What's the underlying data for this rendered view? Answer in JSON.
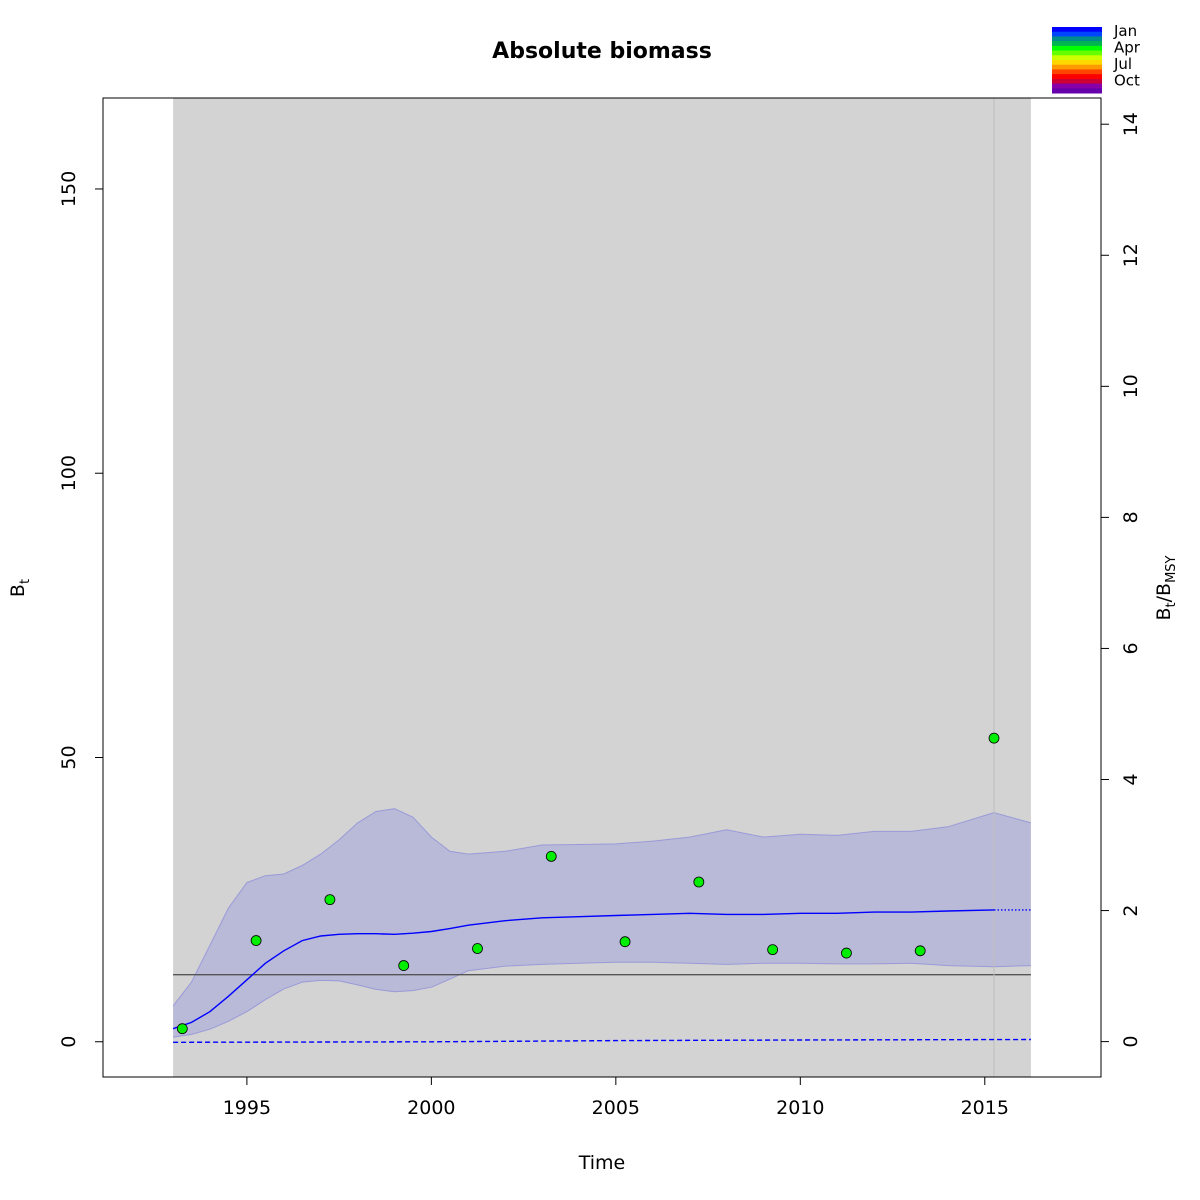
{
  "chart_data": {
    "type": "line",
    "title": "Absolute biomass",
    "xlabel": "Time",
    "ylabel": {
      "main": "B",
      "sub": "t"
    },
    "y2label": {
      "a": "B",
      "a_sub": "t",
      "sep": "/",
      "b": "B",
      "b_sub": "MSY"
    },
    "xlim": [
      1991.1,
      2018.15
    ],
    "ylim": [
      -6.2,
      166
    ],
    "y2lim": [
      -0.54,
      14.4
    ],
    "x_ticks": [
      1995,
      2000,
      2005,
      2010,
      2015
    ],
    "x_tick_labels": [
      "1995",
      "2000",
      "2005",
      "2010",
      "2015"
    ],
    "y_ticks": [
      0,
      50,
      100,
      150
    ],
    "y_tick_labels": [
      "0",
      "50",
      "100",
      "150"
    ],
    "y2_ticks": [
      0,
      2,
      4,
      6,
      8,
      10,
      12,
      14
    ],
    "y2_tick_labels": [
      "0",
      "2",
      "4",
      "6",
      "8",
      "10",
      "12",
      "14"
    ],
    "grid": false,
    "shaded_region": {
      "x_start": 1993.0,
      "x_end": 2016.25,
      "color": "#d3d3d3"
    },
    "vertical_line": {
      "x": 2015.25,
      "color": "#bebebe"
    },
    "bmsy_line": {
      "y": 11.8,
      "color": "#555555"
    },
    "series": [
      {
        "name": "",
        "kind": "estimate",
        "color": "#0000ff",
        "x": [
          1993.0,
          1993.5,
          1994.0,
          1994.5,
          1995.0,
          1995.5,
          1996.0,
          1996.5,
          1997.0,
          1997.5,
          1998.0,
          1998.5,
          1999.0,
          1999.5,
          2000.0,
          2000.5,
          2001.0,
          2002.0,
          2003.0,
          2004.0,
          2005.0,
          2006.0,
          2007.0,
          2008.0,
          2009.0,
          2010.0,
          2011.0,
          2012.0,
          2013.0,
          2014.0,
          2015.25
        ],
        "y": [
          2.3,
          3.4,
          5.3,
          8.0,
          10.9,
          13.8,
          16.0,
          17.8,
          18.6,
          18.9,
          19.0,
          19.0,
          18.9,
          19.1,
          19.4,
          19.9,
          20.5,
          21.3,
          21.8,
          22.0,
          22.2,
          22.4,
          22.6,
          22.4,
          22.4,
          22.6,
          22.6,
          22.8,
          22.8,
          23.0,
          23.2
        ]
      },
      {
        "name": "",
        "kind": "forecast",
        "color": "#0000ff",
        "style": "dotted",
        "x": [
          2015.25,
          2016.25
        ],
        "y": [
          23.2,
          23.2
        ]
      },
      {
        "name": "",
        "kind": "lower-dashed",
        "color": "#0000ff",
        "style": "dashed",
        "x": [
          1993.0,
          2000.0,
          2005.0,
          2010.0,
          2016.25
        ],
        "y": [
          -0.1,
          0.0,
          0.2,
          0.3,
          0.4
        ]
      }
    ],
    "confidence_band": {
      "fill": "rgba(0,0,255,0.12)",
      "stroke": "#9a9ad8",
      "x": [
        1993.0,
        1993.5,
        1994.0,
        1994.5,
        1995.0,
        1995.5,
        1996.0,
        1996.5,
        1997.0,
        1997.5,
        1998.0,
        1998.5,
        1999.0,
        1999.5,
        2000.0,
        2000.5,
        2001.0,
        2002.0,
        2003.0,
        2004.0,
        2005.0,
        2006.0,
        2007.0,
        2008.0,
        2009.0,
        2010.0,
        2011.0,
        2012.0,
        2013.0,
        2014.0,
        2015.25,
        2016.25
      ],
      "upper": [
        6.3,
        10.5,
        17.0,
        23.5,
        28.0,
        29.2,
        29.5,
        31.0,
        33.0,
        35.5,
        38.5,
        40.5,
        41.0,
        39.5,
        36.0,
        33.5,
        33.0,
        33.5,
        34.6,
        34.7,
        34.8,
        35.3,
        36.0,
        37.3,
        36.0,
        36.5,
        36.3,
        37.0,
        37.0,
        37.8,
        40.3,
        38.5
      ],
      "lower": [
        0.8,
        1.3,
        2.2,
        3.6,
        5.3,
        7.4,
        9.3,
        10.5,
        10.8,
        10.7,
        10.0,
        9.2,
        8.8,
        9.0,
        9.6,
        11.0,
        12.5,
        13.3,
        13.6,
        13.8,
        14.0,
        14.0,
        13.8,
        13.6,
        13.8,
        13.8,
        13.7,
        13.7,
        13.8,
        13.4,
        13.2,
        13.4
      ]
    },
    "observations": {
      "marker_fill": "#00ee00",
      "marker_stroke": "#000000",
      "points": [
        {
          "x": 1993.25,
          "y": 2.3
        },
        {
          "x": 1995.25,
          "y": 17.8
        },
        {
          "x": 1997.25,
          "y": 25.0
        },
        {
          "x": 1999.25,
          "y": 13.4
        },
        {
          "x": 2001.25,
          "y": 16.4
        },
        {
          "x": 2003.25,
          "y": 32.6
        },
        {
          "x": 2005.25,
          "y": 17.6
        },
        {
          "x": 2007.25,
          "y": 28.1
        },
        {
          "x": 2009.25,
          "y": 16.2
        },
        {
          "x": 2011.25,
          "y": 15.6
        },
        {
          "x": 2013.25,
          "y": 16.0
        },
        {
          "x": 2015.25,
          "y": 53.4
        }
      ]
    },
    "legend": {
      "placement": "top-right",
      "labels": [
        "Jan",
        "Apr",
        "Jul",
        "Oct"
      ],
      "colors": [
        "#0000ff",
        "#0046ff",
        "#008c8c",
        "#00b450",
        "#00ff00",
        "#66ff00",
        "#ccff00",
        "#ffd700",
        "#ff9900",
        "#ff4500",
        "#ff0000",
        "#cc0033",
        "#8800aa",
        "#6600aa"
      ]
    }
  }
}
